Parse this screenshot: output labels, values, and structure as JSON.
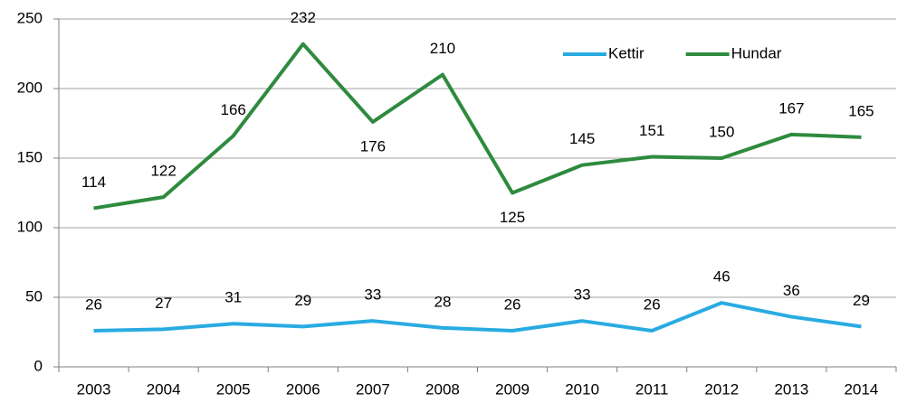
{
  "chart_data": {
    "type": "line",
    "categories": [
      "2003",
      "2004",
      "2005",
      "2006",
      "2007",
      "2008",
      "2009",
      "2010",
      "2011",
      "2012",
      "2013",
      "2014"
    ],
    "series": [
      {
        "name": "Kettir",
        "color": "#29abe2",
        "values": [
          26,
          27,
          31,
          29,
          33,
          28,
          26,
          33,
          26,
          46,
          36,
          29
        ]
      },
      {
        "name": "Hundar",
        "color": "#2e8b3e",
        "values": [
          114,
          122,
          166,
          232,
          176,
          210,
          125,
          145,
          151,
          150,
          167,
          165
        ]
      }
    ],
    "ylim": [
      0,
      250
    ],
    "yticks": [
      0,
      50,
      100,
      150,
      200,
      250
    ],
    "grid": true,
    "legend": "top-right"
  }
}
